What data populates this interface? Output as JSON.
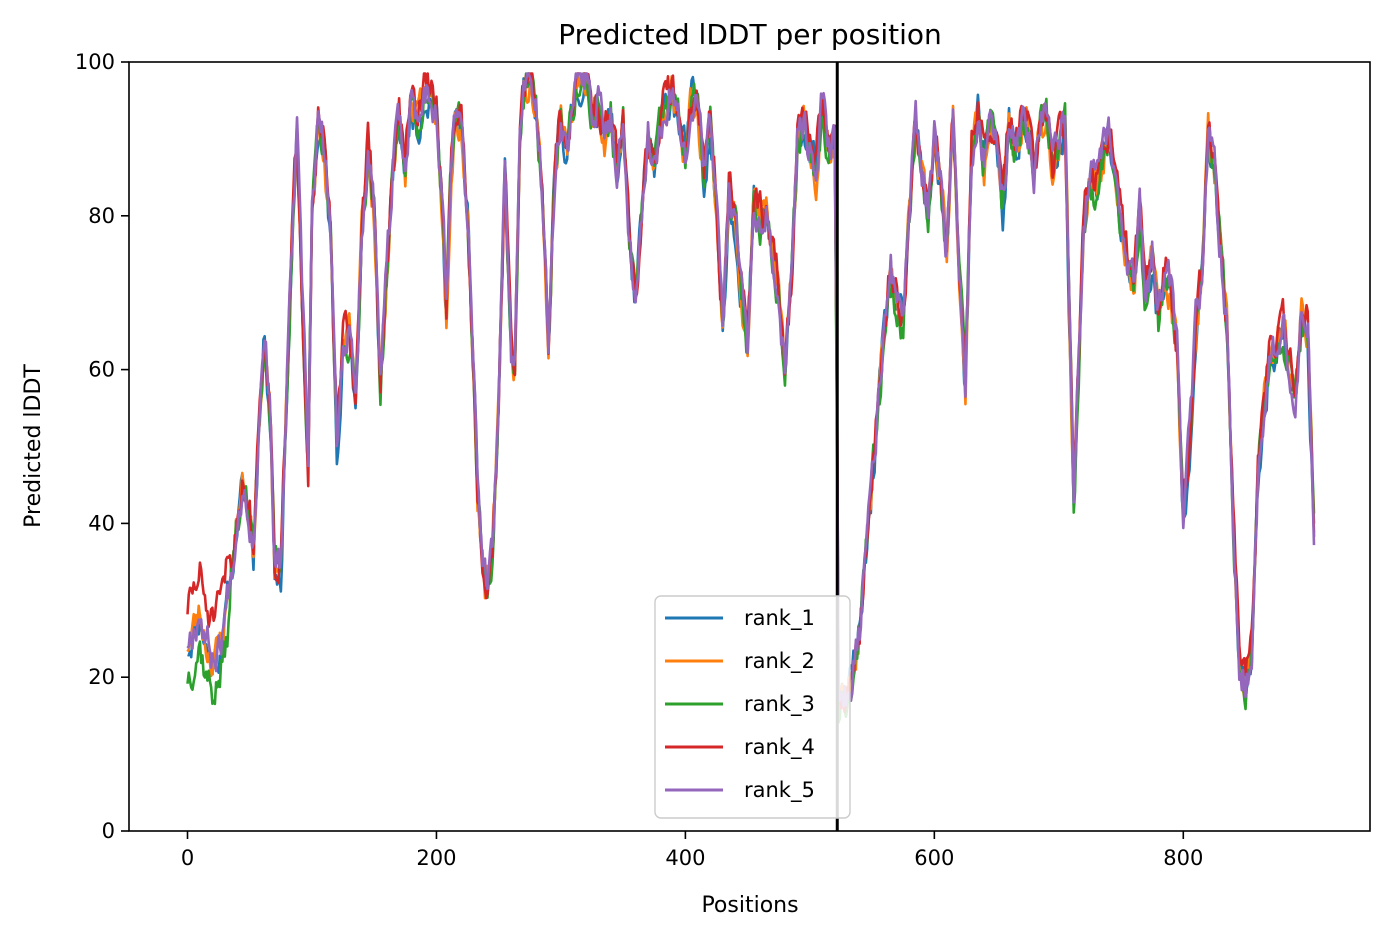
{
  "chart_data": {
    "type": "line",
    "title": "Predicted lDDT per position",
    "xlabel": "Positions",
    "ylabel": "Predicted lDDT",
    "xlim": [
      -47,
      950
    ],
    "ylim": [
      0,
      100
    ],
    "xticks": [
      0,
      200,
      400,
      600,
      800
    ],
    "yticks": [
      0,
      20,
      40,
      60,
      80,
      100
    ],
    "legend_position": "lower-center",
    "grid": false,
    "chain_break_at": 522,
    "x_max": 905,
    "base_curve": [
      [
        0,
        24
      ],
      [
        5,
        26
      ],
      [
        10,
        28
      ],
      [
        15,
        24
      ],
      [
        20,
        22
      ],
      [
        25,
        23
      ],
      [
        30,
        27
      ],
      [
        35,
        33
      ],
      [
        40,
        40
      ],
      [
        45,
        45
      ],
      [
        50,
        40
      ],
      [
        53,
        36
      ],
      [
        57,
        52
      ],
      [
        62,
        65
      ],
      [
        67,
        52
      ],
      [
        70,
        34
      ],
      [
        75,
        33
      ],
      [
        80,
        58
      ],
      [
        85,
        80
      ],
      [
        88,
        90
      ],
      [
        92,
        70
      ],
      [
        97,
        47
      ],
      [
        100,
        80
      ],
      [
        105,
        91
      ],
      [
        110,
        88
      ],
      [
        115,
        76
      ],
      [
        120,
        50
      ],
      [
        125,
        63
      ],
      [
        130,
        64
      ],
      [
        135,
        55
      ],
      [
        140,
        78
      ],
      [
        145,
        88
      ],
      [
        150,
        80
      ],
      [
        155,
        57
      ],
      [
        160,
        72
      ],
      [
        165,
        85
      ],
      [
        170,
        92
      ],
      [
        175,
        86
      ],
      [
        180,
        95
      ],
      [
        185,
        91
      ],
      [
        190,
        96
      ],
      [
        195,
        95
      ],
      [
        200,
        93
      ],
      [
        205,
        80
      ],
      [
        208,
        68
      ],
      [
        212,
        86
      ],
      [
        215,
        93
      ],
      [
        220,
        91
      ],
      [
        225,
        80
      ],
      [
        230,
        58
      ],
      [
        233,
        44
      ],
      [
        237,
        35
      ],
      [
        240,
        31
      ],
      [
        245,
        35
      ],
      [
        250,
        55
      ],
      [
        255,
        86
      ],
      [
        260,
        62
      ],
      [
        263,
        60
      ],
      [
        267,
        90
      ],
      [
        270,
        95
      ],
      [
        275,
        97
      ],
      [
        280,
        93
      ],
      [
        285,
        83
      ],
      [
        290,
        62
      ],
      [
        295,
        85
      ],
      [
        300,
        93
      ],
      [
        305,
        88
      ],
      [
        310,
        94
      ],
      [
        315,
        97
      ],
      [
        320,
        97
      ],
      [
        325,
        93
      ],
      [
        330,
        95
      ],
      [
        335,
        90
      ],
      [
        340,
        93
      ],
      [
        345,
        85
      ],
      [
        350,
        92
      ],
      [
        355,
        77
      ],
      [
        360,
        68
      ],
      [
        365,
        80
      ],
      [
        370,
        90
      ],
      [
        375,
        85
      ],
      [
        380,
        92
      ],
      [
        385,
        94
      ],
      [
        390,
        96
      ],
      [
        395,
        92
      ],
      [
        400,
        88
      ],
      [
        405,
        95
      ],
      [
        410,
        94
      ],
      [
        415,
        85
      ],
      [
        420,
        92
      ],
      [
        425,
        80
      ],
      [
        430,
        65
      ],
      [
        435,
        82
      ],
      [
        440,
        79
      ],
      [
        445,
        70
      ],
      [
        450,
        63
      ],
      [
        455,
        82
      ],
      [
        460,
        79
      ],
      [
        465,
        80
      ],
      [
        470,
        75
      ],
      [
        475,
        70
      ],
      [
        480,
        58
      ],
      [
        485,
        70
      ],
      [
        490,
        90
      ],
      [
        495,
        92
      ],
      [
        500,
        88
      ],
      [
        505,
        85
      ],
      [
        510,
        95
      ],
      [
        515,
        88
      ],
      [
        520,
        90
      ],
      [
        522,
        50
      ],
      [
        523,
        17
      ],
      [
        530,
        17
      ],
      [
        535,
        21
      ],
      [
        540,
        25
      ],
      [
        545,
        35
      ],
      [
        550,
        45
      ],
      [
        555,
        55
      ],
      [
        560,
        65
      ],
      [
        565,
        72
      ],
      [
        570,
        68
      ],
      [
        575,
        65
      ],
      [
        580,
        80
      ],
      [
        585,
        92
      ],
      [
        590,
        85
      ],
      [
        595,
        80
      ],
      [
        600,
        90
      ],
      [
        605,
        83
      ],
      [
        610,
        75
      ],
      [
        615,
        92
      ],
      [
        620,
        72
      ],
      [
        625,
        58
      ],
      [
        630,
        88
      ],
      [
        635,
        93
      ],
      [
        640,
        86
      ],
      [
        645,
        92
      ],
      [
        650,
        88
      ],
      [
        655,
        80
      ],
      [
        660,
        92
      ],
      [
        665,
        88
      ],
      [
        670,
        92
      ],
      [
        675,
        90
      ],
      [
        680,
        85
      ],
      [
        685,
        92
      ],
      [
        690,
        92
      ],
      [
        695,
        85
      ],
      [
        700,
        88
      ],
      [
        705,
        92
      ],
      [
        708,
        70
      ],
      [
        712,
        42
      ],
      [
        715,
        55
      ],
      [
        720,
        78
      ],
      [
        725,
        85
      ],
      [
        730,
        83
      ],
      [
        735,
        87
      ],
      [
        740,
        90
      ],
      [
        745,
        85
      ],
      [
        750,
        78
      ],
      [
        755,
        74
      ],
      [
        760,
        70
      ],
      [
        765,
        80
      ],
      [
        770,
        68
      ],
      [
        775,
        74
      ],
      [
        780,
        66
      ],
      [
        785,
        72
      ],
      [
        790,
        70
      ],
      [
        795,
        62
      ],
      [
        800,
        40
      ],
      [
        805,
        50
      ],
      [
        810,
        65
      ],
      [
        815,
        72
      ],
      [
        820,
        90
      ],
      [
        825,
        85
      ],
      [
        830,
        75
      ],
      [
        835,
        65
      ],
      [
        840,
        40
      ],
      [
        845,
        22
      ],
      [
        850,
        18
      ],
      [
        855,
        22
      ],
      [
        860,
        45
      ],
      [
        865,
        55
      ],
      [
        870,
        62
      ],
      [
        875,
        63
      ],
      [
        880,
        65
      ],
      [
        885,
        60
      ],
      [
        890,
        57
      ],
      [
        895,
        66
      ],
      [
        900,
        65
      ],
      [
        905,
        38
      ]
    ],
    "series": [
      {
        "name": "rank_1",
        "color": "#1f77b4",
        "offset": 0,
        "seed": 11
      },
      {
        "name": "rank_2",
        "color": "#ff7f0e",
        "offset": 0.4,
        "seed": 23
      },
      {
        "name": "rank_3",
        "color": "#2ca02c",
        "offset": 0.2,
        "seed": 37
      },
      {
        "name": "rank_4",
        "color": "#d62728",
        "offset": 1.2,
        "seed": 51
      },
      {
        "name": "rank_5",
        "color": "#9467bd",
        "offset": 0.8,
        "seed": 67
      }
    ],
    "chain_break_color": "#000000"
  }
}
